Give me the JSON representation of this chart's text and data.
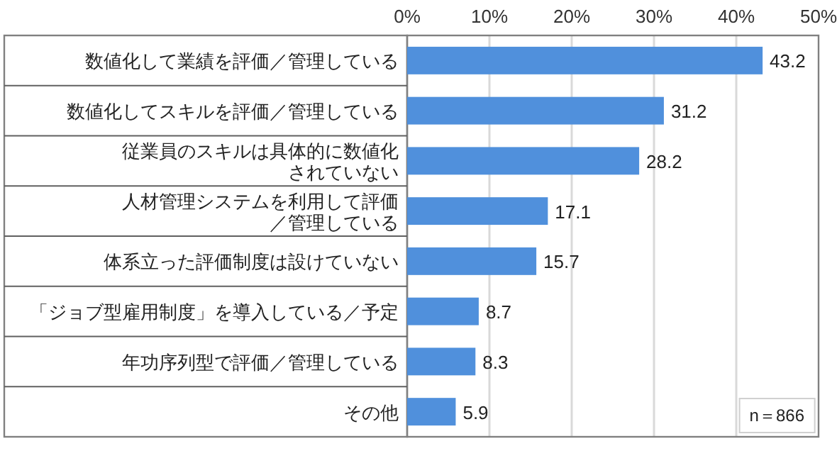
{
  "chart_data": {
    "type": "bar",
    "orientation": "horizontal",
    "categories": [
      "数値化して業績を評価／管理している",
      "数値化してスキルを評価／管理している",
      "従業員のスキルは具体的に数値化されていない",
      "人材管理システムを利用して評価／管理している",
      "体系立った評価制度は設けていない",
      "「ジョブ型雇用制度」を導入している／予定",
      "年功序列型で評価／管理している",
      "その他"
    ],
    "values": [
      43.2,
      31.2,
      28.2,
      17.1,
      15.7,
      8.7,
      8.3,
      5.9
    ],
    "color": "#5090dc",
    "xlim": [
      0,
      50
    ],
    "xticks": [
      {
        "value": 0,
        "label": "0%"
      },
      {
        "value": 10,
        "label": "10%"
      },
      {
        "value": 20,
        "label": "20%"
      },
      {
        "value": 30,
        "label": "30%"
      },
      {
        "value": 40,
        "label": "40%"
      },
      {
        "value": 50,
        "label": "50%"
      }
    ],
    "grid": "x",
    "data_labels": true,
    "annotations": [
      "n＝866"
    ]
  }
}
